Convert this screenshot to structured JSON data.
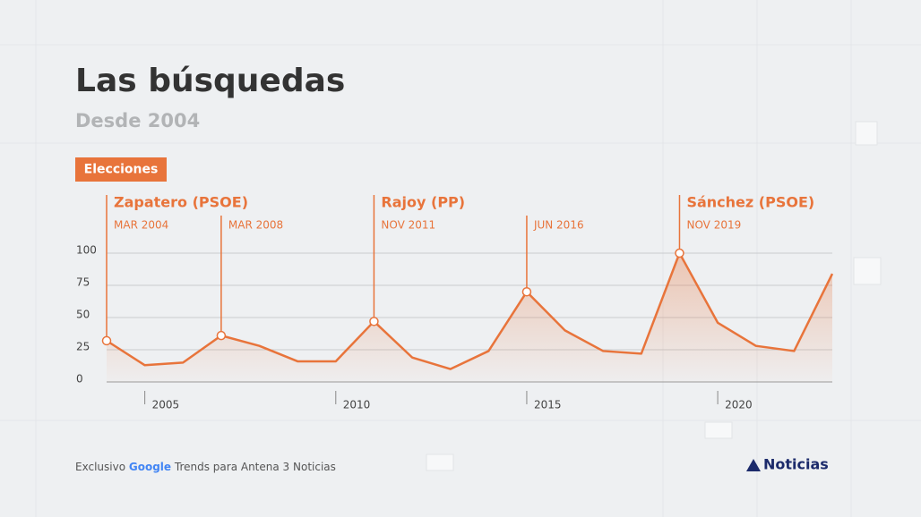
{
  "chart_data": {
    "type": "line",
    "title": "Las búsquedas",
    "subtitle": "Desde 2004",
    "badge": "Elecciones",
    "x": [
      2004,
      2005,
      2006,
      2007,
      2008,
      2009,
      2010,
      2011,
      2012,
      2013,
      2014,
      2015,
      2016,
      2017,
      2018,
      2019,
      2020,
      2021,
      2022,
      2023
    ],
    "series": [
      {
        "color": "#e8743b",
        "values": [
          32,
          13,
          15,
          36,
          28,
          16,
          16,
          47,
          19,
          10,
          24,
          70,
          40,
          24,
          22,
          100,
          46,
          28,
          24,
          84
        ]
      }
    ],
    "xlim": [
      2004,
      2023
    ],
    "xticks": [
      2005,
      2010,
      2015,
      2020
    ],
    "ylim": [
      0,
      100
    ],
    "yticks": [
      0,
      25,
      50,
      75,
      100
    ],
    "grid": true,
    "annotations": [
      {
        "x": 2004,
        "date": "MAR 2004",
        "label": "Zapatero (PSOE)"
      },
      {
        "x": 2007,
        "date": "MAR 2008"
      },
      {
        "x": 2011,
        "date": "NOV 2011",
        "label": "Rajoy (PP)"
      },
      {
        "x": 2015,
        "date": "JUN 2016"
      },
      {
        "x": 2019,
        "date": "NOV 2019",
        "label": "Sánchez (PSOE)"
      }
    ]
  },
  "footer": {
    "prefix": "Exclusivo",
    "brand": "Google",
    "rest": "Trends para Antena 3 Noticias"
  },
  "logo": "Noticias"
}
